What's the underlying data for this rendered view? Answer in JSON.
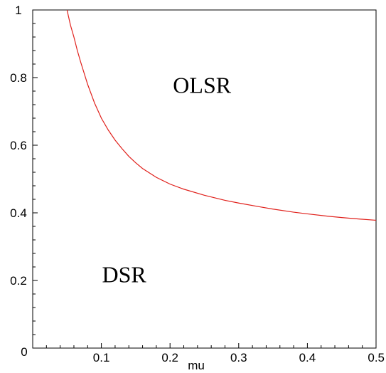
{
  "chart_data": {
    "type": "line",
    "xlabel": "mu",
    "ylabel": "",
    "xlim": [
      0,
      0.5
    ],
    "ylim": [
      0,
      1
    ],
    "xticks": [
      "0.1",
      "0.2",
      "0.3",
      "0.4",
      "0.5"
    ],
    "yticks": [
      "0",
      "0.2",
      "0.4",
      "0.6",
      "0.8",
      "1"
    ],
    "grid": false,
    "series": [
      {
        "color": "#e0201b",
        "x": [
          0.05,
          0.055,
          0.06,
          0.065,
          0.07,
          0.08,
          0.09,
          0.1,
          0.11,
          0.12,
          0.13,
          0.14,
          0.15,
          0.16,
          0.18,
          0.2,
          0.22,
          0.25,
          0.28,
          0.3,
          0.33,
          0.35,
          0.38,
          0.4,
          0.43,
          0.45,
          0.48,
          0.5
        ],
        "y": [
          1.0,
          0.955,
          0.92,
          0.88,
          0.845,
          0.78,
          0.725,
          0.68,
          0.645,
          0.615,
          0.59,
          0.567,
          0.548,
          0.531,
          0.505,
          0.485,
          0.47,
          0.452,
          0.437,
          0.429,
          0.418,
          0.411,
          0.402,
          0.397,
          0.39,
          0.386,
          0.381,
          0.378
        ]
      }
    ],
    "annotations": [
      {
        "text": "OLSR",
        "x": 0.2,
        "y": 0.78
      },
      {
        "text": "DSR",
        "x": 0.1,
        "y": 0.22
      }
    ]
  }
}
